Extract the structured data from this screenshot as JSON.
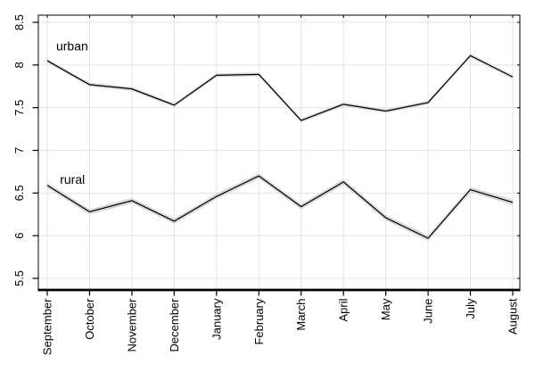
{
  "figure": {
    "title": "",
    "background_color": "#ffffff"
  },
  "chart_data": {
    "type": "line",
    "categories": [
      "September",
      "October",
      "November",
      "December",
      "January",
      "February",
      "March",
      "April",
      "May",
      "June",
      "July",
      "August"
    ],
    "series": [
      {
        "name": "urban",
        "values": [
          8.05,
          7.77,
          7.72,
          7.53,
          7.88,
          7.89,
          7.35,
          7.54,
          7.46,
          7.56,
          8.11,
          7.86
        ],
        "band_halfwidth": 0.022
      },
      {
        "name": "rural",
        "values": [
          6.59,
          6.28,
          6.41,
          6.17,
          6.46,
          6.7,
          6.34,
          6.63,
          6.21,
          5.97,
          6.54,
          6.39
        ],
        "band_halfwidth": 0.032
      }
    ],
    "annotations": [
      {
        "text": "urban",
        "month_index": 0.21,
        "value": 8.17
      },
      {
        "text": "rural",
        "month_index": 0.3,
        "value": 6.61
      }
    ],
    "yticks": [
      {
        "v": 5.5,
        "label": "5.5"
      },
      {
        "v": 6.0,
        "label": "6"
      },
      {
        "v": 6.5,
        "label": "6.5"
      },
      {
        "v": 7.0,
        "label": "7"
      },
      {
        "v": 7.5,
        "label": "7.5"
      },
      {
        "v": 8.0,
        "label": "8"
      },
      {
        "v": 8.5,
        "label": "8.5"
      }
    ],
    "ylim": [
      5.364,
      8.584
    ],
    "xlabel": "",
    "ylabel": "",
    "grid": true,
    "legend_position": "inline-annotations",
    "colors": {
      "line": "#000000",
      "band": "#d9d9d9",
      "grid": "#e3e3e3",
      "border": "#000000",
      "tick": "#000000",
      "text": "#000000"
    }
  }
}
